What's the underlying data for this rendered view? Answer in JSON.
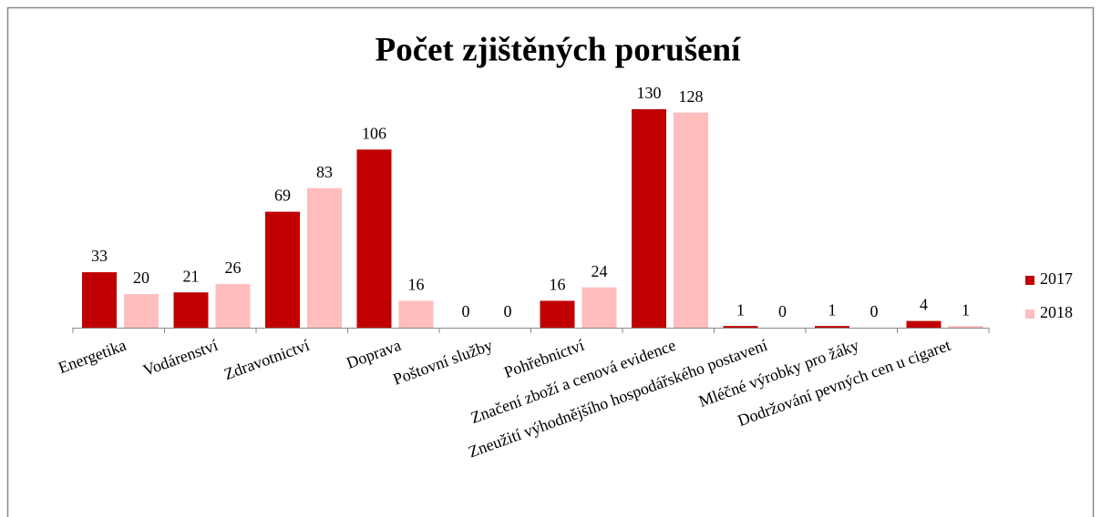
{
  "chart_data": {
    "type": "bar",
    "title": "Počet zjištěných porušení",
    "categories": [
      "Energetika",
      "Vodárenství",
      "Zdravotnictví",
      "Doprava",
      "Poštovní služby",
      "Pohřebnictví",
      "Značení zboží a cenová evidence",
      "Zneužití výhodnějšího hospodářského postavení",
      "Mléčné výrobky pro žáky",
      "Dodržování pevných cen u cigaret"
    ],
    "series": [
      {
        "name": "2017",
        "color": "#c00000",
        "values": [
          33,
          21,
          69,
          106,
          0,
          16,
          130,
          1,
          1,
          4
        ]
      },
      {
        "name": "2018",
        "color": "#ffbdbd",
        "values": [
          20,
          26,
          83,
          16,
          0,
          24,
          128,
          0,
          0,
          1
        ]
      }
    ],
    "legend": "right"
  }
}
